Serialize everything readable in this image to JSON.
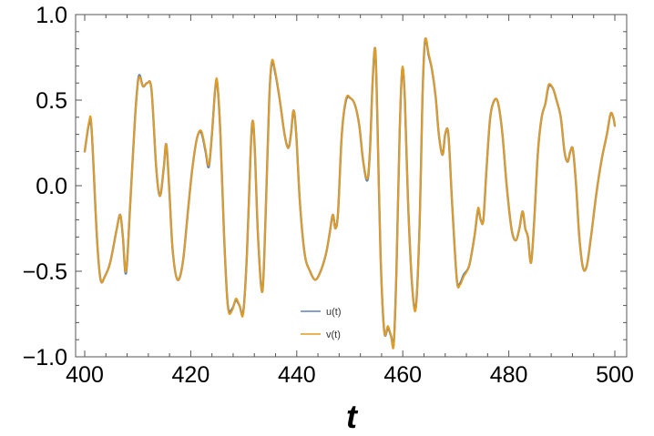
{
  "chart_data": {
    "type": "line",
    "xlabel": "t",
    "ylabel": "",
    "xlim": [
      400,
      500
    ],
    "ylim": [
      -1.0,
      1.0
    ],
    "x_ticks": [
      400,
      420,
      440,
      460,
      480,
      500
    ],
    "x_tick_labels": [
      "400",
      "420",
      "440",
      "460",
      "480",
      "500"
    ],
    "y_ticks": [
      -1.0,
      -0.5,
      0.0,
      0.5,
      1.0
    ],
    "y_tick_labels": [
      "−1.0",
      "−0.5",
      "0.0",
      "0.5",
      "1.0"
    ],
    "grid": false,
    "legend_position": "bottom-center",
    "series": [
      {
        "name": "u(t)",
        "color": "#5e81b5",
        "points": [
          [
            400.0,
            0.2
          ],
          [
            400.8,
            0.36
          ],
          [
            401.3,
            0.33
          ],
          [
            402.3,
            -0.3
          ],
          [
            403.0,
            -0.55
          ],
          [
            403.8,
            -0.53
          ],
          [
            404.8,
            -0.45
          ],
          [
            406.0,
            -0.26
          ],
          [
            406.7,
            -0.17
          ],
          [
            407.2,
            -0.3
          ],
          [
            407.8,
            -0.51
          ],
          [
            408.6,
            -0.1
          ],
          [
            409.5,
            0.4
          ],
          [
            410.2,
            0.64
          ],
          [
            411.0,
            0.58
          ],
          [
            411.8,
            0.6
          ],
          [
            412.6,
            0.56
          ],
          [
            413.5,
            0.1
          ],
          [
            414.2,
            -0.06
          ],
          [
            414.9,
            0.1
          ],
          [
            415.4,
            0.24
          ],
          [
            416.0,
            -0.05
          ],
          [
            416.6,
            -0.38
          ],
          [
            417.5,
            -0.55
          ],
          [
            418.5,
            -0.45
          ],
          [
            419.5,
            -0.14
          ],
          [
            420.3,
            0.1
          ],
          [
            421.2,
            0.28
          ],
          [
            422.0,
            0.31
          ],
          [
            422.8,
            0.2
          ],
          [
            423.4,
            0.11
          ],
          [
            424.0,
            0.3
          ],
          [
            424.6,
            0.56
          ],
          [
            425.0,
            0.6
          ],
          [
            425.6,
            0.3
          ],
          [
            426.3,
            -0.3
          ],
          [
            427.0,
            -0.7
          ],
          [
            427.8,
            -0.72
          ],
          [
            428.5,
            -0.67
          ],
          [
            429.2,
            -0.7
          ],
          [
            429.9,
            -0.74
          ],
          [
            430.6,
            -0.4
          ],
          [
            431.3,
            0.2
          ],
          [
            431.7,
            0.38
          ],
          [
            432.1,
            0.2
          ],
          [
            432.7,
            -0.3
          ],
          [
            433.5,
            -0.62
          ],
          [
            434.1,
            -0.2
          ],
          [
            434.8,
            0.5
          ],
          [
            435.3,
            0.72
          ],
          [
            436.0,
            0.65
          ],
          [
            436.8,
            0.5
          ],
          [
            437.7,
            0.3
          ],
          [
            438.4,
            0.22
          ],
          [
            438.9,
            0.3
          ],
          [
            439.4,
            0.44
          ],
          [
            439.9,
            0.3
          ],
          [
            440.6,
            -0.1
          ],
          [
            441.5,
            -0.4
          ],
          [
            442.5,
            -0.5
          ],
          [
            443.5,
            -0.55
          ],
          [
            444.5,
            -0.5
          ],
          [
            445.5,
            -0.4
          ],
          [
            446.2,
            -0.28
          ],
          [
            446.8,
            -0.17
          ],
          [
            447.3,
            -0.25
          ],
          [
            447.8,
            -0.15
          ],
          [
            448.5,
            0.3
          ],
          [
            449.3,
            0.5
          ],
          [
            450.2,
            0.51
          ],
          [
            451.0,
            0.47
          ],
          [
            451.8,
            0.35
          ],
          [
            452.5,
            0.15
          ],
          [
            453.3,
            0.03
          ],
          [
            453.8,
            0.2
          ],
          [
            454.3,
            0.6
          ],
          [
            454.8,
            0.8
          ],
          [
            455.2,
            0.4
          ],
          [
            455.8,
            -0.4
          ],
          [
            456.5,
            -0.85
          ],
          [
            457.2,
            -0.83
          ],
          [
            457.8,
            -0.88
          ],
          [
            458.3,
            -0.92
          ],
          [
            458.8,
            -0.5
          ],
          [
            459.4,
            0.3
          ],
          [
            459.9,
            0.68
          ],
          [
            460.4,
            0.5
          ],
          [
            461.0,
            -0.1
          ],
          [
            461.8,
            -0.6
          ],
          [
            462.5,
            -0.7
          ],
          [
            463.2,
            -0.2
          ],
          [
            463.7,
            0.5
          ],
          [
            464.2,
            0.85
          ],
          [
            464.9,
            0.76
          ],
          [
            465.5,
            0.68
          ],
          [
            466.2,
            0.52
          ],
          [
            466.8,
            0.3
          ],
          [
            467.5,
            0.18
          ],
          [
            468.0,
            0.3
          ],
          [
            468.6,
            0.3
          ],
          [
            469.3,
            -0.1
          ],
          [
            470.2,
            -0.55
          ],
          [
            470.8,
            -0.57
          ],
          [
            471.5,
            -0.52
          ],
          [
            472.5,
            -0.47
          ],
          [
            473.5,
            -0.3
          ],
          [
            474.2,
            -0.14
          ],
          [
            474.7,
            -0.2
          ],
          [
            475.2,
            -0.2
          ],
          [
            475.8,
            0.1
          ],
          [
            476.5,
            0.4
          ],
          [
            477.3,
            0.5
          ],
          [
            478.0,
            0.48
          ],
          [
            478.8,
            0.3
          ],
          [
            479.6,
            0.0
          ],
          [
            480.5,
            -0.25
          ],
          [
            481.3,
            -0.32
          ],
          [
            482.0,
            -0.25
          ],
          [
            482.6,
            -0.15
          ],
          [
            483.1,
            -0.25
          ],
          [
            483.6,
            -0.3
          ],
          [
            484.2,
            -0.45
          ],
          [
            484.8,
            -0.2
          ],
          [
            485.5,
            0.2
          ],
          [
            486.2,
            0.4
          ],
          [
            486.9,
            0.48
          ],
          [
            487.5,
            0.58
          ],
          [
            488.3,
            0.57
          ],
          [
            489.0,
            0.5
          ],
          [
            489.8,
            0.4
          ],
          [
            490.5,
            0.2
          ],
          [
            491.1,
            0.14
          ],
          [
            491.6,
            0.2
          ],
          [
            492.1,
            0.21
          ],
          [
            492.7,
            0.0
          ],
          [
            493.3,
            -0.3
          ],
          [
            494.0,
            -0.48
          ],
          [
            494.7,
            -0.47
          ],
          [
            495.5,
            -0.3
          ],
          [
            496.5,
            -0.05
          ],
          [
            497.5,
            0.15
          ],
          [
            498.5,
            0.3
          ],
          [
            499.2,
            0.42
          ],
          [
            499.7,
            0.4
          ],
          [
            500.0,
            0.35
          ]
        ]
      },
      {
        "name": "v(t)",
        "color": "#e19c24",
        "points": [
          [
            400.0,
            0.2
          ],
          [
            400.8,
            0.37
          ],
          [
            401.3,
            0.34
          ],
          [
            402.3,
            -0.3
          ],
          [
            403.0,
            -0.55
          ],
          [
            403.8,
            -0.53
          ],
          [
            404.8,
            -0.45
          ],
          [
            406.0,
            -0.26
          ],
          [
            406.7,
            -0.17
          ],
          [
            407.2,
            -0.3
          ],
          [
            407.8,
            -0.5
          ],
          [
            408.6,
            -0.1
          ],
          [
            409.5,
            0.4
          ],
          [
            410.2,
            0.63
          ],
          [
            411.0,
            0.58
          ],
          [
            411.8,
            0.6
          ],
          [
            412.6,
            0.56
          ],
          [
            413.5,
            0.1
          ],
          [
            414.2,
            -0.06
          ],
          [
            414.9,
            0.1
          ],
          [
            415.4,
            0.24
          ],
          [
            416.0,
            -0.05
          ],
          [
            416.6,
            -0.38
          ],
          [
            417.5,
            -0.55
          ],
          [
            418.5,
            -0.45
          ],
          [
            419.5,
            -0.14
          ],
          [
            420.3,
            0.1
          ],
          [
            421.2,
            0.28
          ],
          [
            422.0,
            0.32
          ],
          [
            422.8,
            0.21
          ],
          [
            423.4,
            0.12
          ],
          [
            424.0,
            0.3
          ],
          [
            424.6,
            0.56
          ],
          [
            425.0,
            0.61
          ],
          [
            425.6,
            0.3
          ],
          [
            426.3,
            -0.3
          ],
          [
            427.0,
            -0.71
          ],
          [
            427.8,
            -0.73
          ],
          [
            428.5,
            -0.66
          ],
          [
            429.2,
            -0.7
          ],
          [
            429.9,
            -0.75
          ],
          [
            430.6,
            -0.4
          ],
          [
            431.3,
            0.2
          ],
          [
            431.7,
            0.38
          ],
          [
            432.1,
            0.2
          ],
          [
            432.7,
            -0.3
          ],
          [
            433.5,
            -0.62
          ],
          [
            434.1,
            -0.2
          ],
          [
            434.8,
            0.5
          ],
          [
            435.3,
            0.73
          ],
          [
            436.0,
            0.66
          ],
          [
            436.8,
            0.5
          ],
          [
            437.7,
            0.3
          ],
          [
            438.4,
            0.22
          ],
          [
            438.9,
            0.3
          ],
          [
            439.4,
            0.44
          ],
          [
            439.9,
            0.3
          ],
          [
            440.6,
            -0.1
          ],
          [
            441.5,
            -0.4
          ],
          [
            442.5,
            -0.5
          ],
          [
            443.5,
            -0.55
          ],
          [
            444.5,
            -0.5
          ],
          [
            445.5,
            -0.4
          ],
          [
            446.2,
            -0.28
          ],
          [
            446.8,
            -0.17
          ],
          [
            447.3,
            -0.25
          ],
          [
            447.8,
            -0.15
          ],
          [
            448.5,
            0.3
          ],
          [
            449.3,
            0.51
          ],
          [
            450.2,
            0.51
          ],
          [
            451.0,
            0.47
          ],
          [
            451.8,
            0.35
          ],
          [
            452.5,
            0.15
          ],
          [
            453.3,
            0.04
          ],
          [
            453.8,
            0.2
          ],
          [
            454.3,
            0.6
          ],
          [
            454.8,
            0.8
          ],
          [
            455.2,
            0.4
          ],
          [
            455.8,
            -0.4
          ],
          [
            456.5,
            -0.85
          ],
          [
            457.2,
            -0.82
          ],
          [
            457.8,
            -0.88
          ],
          [
            458.3,
            -0.93
          ],
          [
            458.8,
            -0.5
          ],
          [
            459.4,
            0.3
          ],
          [
            459.9,
            0.69
          ],
          [
            460.4,
            0.5
          ],
          [
            461.0,
            -0.1
          ],
          [
            461.8,
            -0.6
          ],
          [
            462.5,
            -0.71
          ],
          [
            463.2,
            -0.2
          ],
          [
            463.7,
            0.5
          ],
          [
            464.2,
            0.85
          ],
          [
            464.9,
            0.77
          ],
          [
            465.5,
            0.68
          ],
          [
            466.2,
            0.52
          ],
          [
            466.8,
            0.3
          ],
          [
            467.5,
            0.18
          ],
          [
            468.0,
            0.3
          ],
          [
            468.6,
            0.3
          ],
          [
            469.3,
            -0.1
          ],
          [
            470.2,
            -0.55
          ],
          [
            470.8,
            -0.58
          ],
          [
            471.5,
            -0.53
          ],
          [
            472.5,
            -0.47
          ],
          [
            473.5,
            -0.3
          ],
          [
            474.2,
            -0.13
          ],
          [
            474.7,
            -0.2
          ],
          [
            475.2,
            -0.2
          ],
          [
            475.8,
            0.1
          ],
          [
            476.5,
            0.4
          ],
          [
            477.3,
            0.5
          ],
          [
            478.0,
            0.48
          ],
          [
            478.8,
            0.3
          ],
          [
            479.6,
            0.0
          ],
          [
            480.5,
            -0.25
          ],
          [
            481.3,
            -0.32
          ],
          [
            482.0,
            -0.25
          ],
          [
            482.6,
            -0.15
          ],
          [
            483.1,
            -0.25
          ],
          [
            483.6,
            -0.3
          ],
          [
            484.2,
            -0.45
          ],
          [
            484.8,
            -0.2
          ],
          [
            485.5,
            0.2
          ],
          [
            486.2,
            0.4
          ],
          [
            486.9,
            0.48
          ],
          [
            487.5,
            0.59
          ],
          [
            488.3,
            0.57
          ],
          [
            489.0,
            0.5
          ],
          [
            489.8,
            0.4
          ],
          [
            490.5,
            0.2
          ],
          [
            491.1,
            0.14
          ],
          [
            491.6,
            0.2
          ],
          [
            492.1,
            0.21
          ],
          [
            492.7,
            0.0
          ],
          [
            493.3,
            -0.3
          ],
          [
            494.0,
            -0.48
          ],
          [
            494.7,
            -0.47
          ],
          [
            495.5,
            -0.3
          ],
          [
            496.5,
            -0.05
          ],
          [
            497.5,
            0.15
          ],
          [
            498.5,
            0.3
          ],
          [
            499.2,
            0.42
          ],
          [
            499.7,
            0.4
          ],
          [
            500.0,
            0.35
          ]
        ]
      }
    ]
  }
}
